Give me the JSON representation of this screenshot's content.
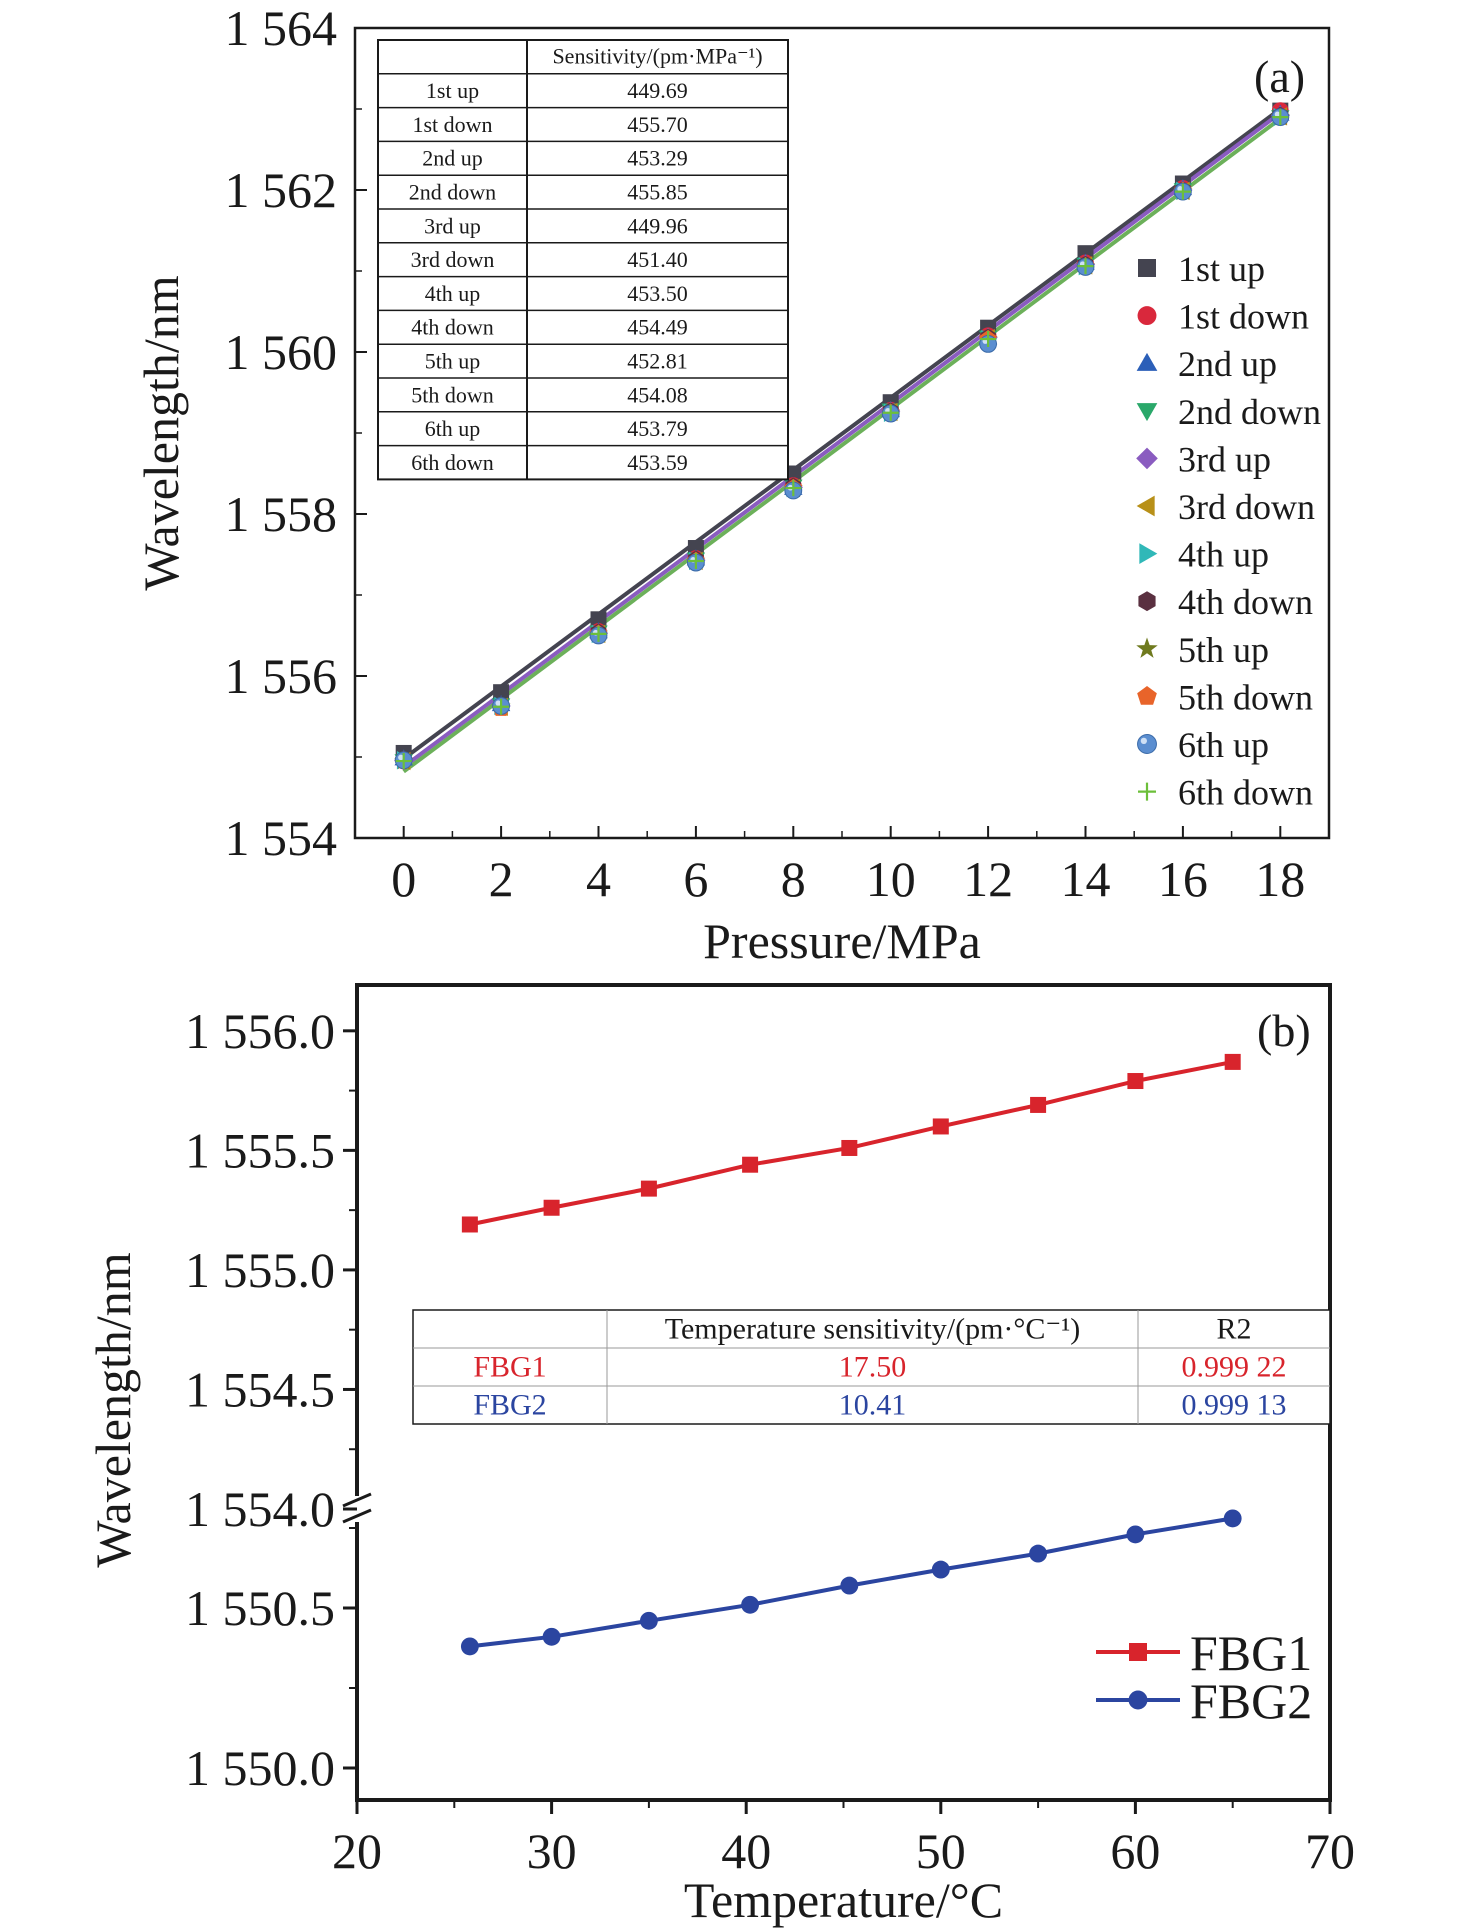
{
  "chart_data": [
    {
      "type": "scatter",
      "panel_label": "(a)",
      "xlabel": "Pressure/MPa",
      "ylabel": "Wavelength/nm",
      "xlim": [
        -1,
        19
      ],
      "ylim": [
        1554,
        1564
      ],
      "xticks": [
        "0",
        "2",
        "4",
        "6",
        "8",
        "10",
        "12",
        "14",
        "16",
        "18"
      ],
      "yticks": [
        {
          "value": 1554,
          "label": "1 554"
        },
        {
          "value": 1556,
          "label": "1 556"
        },
        {
          "value": 1558,
          "label": "1 558"
        },
        {
          "value": 1560,
          "label": "1 560"
        },
        {
          "value": 1562,
          "label": "1 562"
        },
        {
          "value": 1564,
          "label": "1 564"
        }
      ],
      "x": [
        0,
        2,
        4,
        6,
        8,
        10,
        12,
        14,
        16,
        18
      ],
      "series": [
        {
          "name": "1st up",
          "marker": "square",
          "color": "#444450",
          "values": [
            1555.05,
            1555.8,
            1556.7,
            1557.58,
            1558.5,
            1559.38,
            1560.3,
            1561.22,
            1562.08,
            1562.98
          ]
        },
        {
          "name": "1st down",
          "marker": "circle",
          "color": "#d9283c",
          "values": [
            1554.95,
            1555.62,
            1556.55,
            1557.45,
            1558.35,
            1559.28,
            1560.2,
            1561.1,
            1562.02,
            1562.98
          ]
        },
        {
          "name": "2nd up",
          "marker": "triangle-up",
          "color": "#2b5fb8",
          "values": [
            1554.98,
            1555.65,
            1556.55,
            1557.45,
            1558.32,
            1559.28,
            1560.18,
            1561.1,
            1562.02,
            1562.94
          ]
        },
        {
          "name": "2nd down",
          "marker": "triangle-down",
          "color": "#2aa86a",
          "values": [
            1554.95,
            1555.64,
            1556.54,
            1557.44,
            1558.34,
            1559.28,
            1560.18,
            1561.08,
            1562.0,
            1562.9
          ]
        },
        {
          "name": "3rd up",
          "marker": "diamond",
          "color": "#8a5cc0",
          "values": [
            1554.96,
            1555.63,
            1556.53,
            1557.43,
            1558.33,
            1559.27,
            1560.18,
            1561.08,
            1562.0,
            1562.92
          ]
        },
        {
          "name": "3rd down",
          "marker": "triangle-left",
          "color": "#b89018",
          "values": [
            1554.95,
            1555.62,
            1556.52,
            1557.42,
            1558.32,
            1559.26,
            1560.17,
            1561.07,
            1561.99,
            1562.91
          ]
        },
        {
          "name": "4th up",
          "marker": "triangle-right",
          "color": "#30b8b8",
          "values": [
            1554.96,
            1555.63,
            1556.52,
            1557.42,
            1558.32,
            1559.25,
            1560.16,
            1561.06,
            1561.99,
            1562.9
          ]
        },
        {
          "name": "4th down",
          "marker": "hexagon",
          "color": "#5a3040",
          "values": [
            1554.97,
            1555.64,
            1556.54,
            1557.44,
            1558.34,
            1559.27,
            1560.18,
            1561.08,
            1562.0,
            1562.92
          ]
        },
        {
          "name": "5th up",
          "marker": "star",
          "color": "#6f7a1e",
          "values": [
            1554.95,
            1555.62,
            1556.52,
            1557.42,
            1558.32,
            1559.25,
            1560.16,
            1561.06,
            1561.98,
            1562.9
          ]
        },
        {
          "name": "5th down",
          "marker": "pentagon",
          "color": "#e8642a",
          "values": [
            1554.96,
            1555.6,
            1556.52,
            1557.42,
            1558.32,
            1559.25,
            1560.16,
            1561.06,
            1561.99,
            1562.9
          ]
        },
        {
          "name": "6th up",
          "marker": "ball",
          "color": "#5b8ed0",
          "values": [
            1554.96,
            1555.63,
            1556.5,
            1557.4,
            1558.29,
            1559.24,
            1560.1,
            1561.05,
            1561.98,
            1562.9
          ]
        },
        {
          "name": "6th down",
          "marker": "plus",
          "color": "#6cbf3a",
          "values": [
            1554.95,
            1555.62,
            1556.52,
            1557.42,
            1558.32,
            1559.25,
            1560.16,
            1561.06,
            1561.98,
            1562.9
          ]
        }
      ],
      "fit_lines": [
        {
          "color": "#444450",
          "from": [
            0,
            1554.98
          ],
          "to": [
            18,
            1563.0
          ]
        },
        {
          "color": "#6cb05a",
          "from": [
            0,
            1554.82
          ],
          "to": [
            18,
            1562.88
          ]
        },
        {
          "color": "#8a5cc0",
          "from": [
            0,
            1554.88
          ],
          "to": [
            18,
            1562.95
          ]
        }
      ],
      "table": {
        "header": [
          "",
          "Sensitivity/(pm·MPa⁻¹)"
        ],
        "rows": [
          [
            "1st up",
            "449.69"
          ],
          [
            "1st down",
            "455.70"
          ],
          [
            "2nd up",
            "453.29"
          ],
          [
            "2nd down",
            "455.85"
          ],
          [
            "3rd up",
            "449.96"
          ],
          [
            "3rd down",
            "451.40"
          ],
          [
            "4th up",
            "453.50"
          ],
          [
            "4th down",
            "454.49"
          ],
          [
            "5th up",
            "452.81"
          ],
          [
            "5th down",
            "454.08"
          ],
          [
            "6th up",
            "453.79"
          ],
          [
            "6th down",
            "453.59"
          ]
        ]
      },
      "legend_position": "right"
    },
    {
      "type": "line",
      "panel_label": "(b)",
      "xlabel": "Temperature/°C",
      "ylabel": "Wavelength/nm",
      "xlim": [
        20,
        70
      ],
      "xticks": [
        "20",
        "30",
        "40",
        "50",
        "60",
        "70"
      ],
      "upper_ylim": [
        1554.0,
        1556.2
      ],
      "lower_ylim": [
        1549.9,
        1550.8
      ],
      "yticks_upper": [
        {
          "value": 1554.0,
          "label": "1 554.0"
        },
        {
          "value": 1554.5,
          "label": "1 554.5"
        },
        {
          "value": 1555.0,
          "label": "1 555.0"
        },
        {
          "value": 1555.5,
          "label": "1 555.5"
        },
        {
          "value": 1556.0,
          "label": "1 556.0"
        }
      ],
      "yticks_lower": [
        {
          "value": 1550.0,
          "label": "1 550.0"
        },
        {
          "value": 1550.5,
          "label": "1 550.5"
        }
      ],
      "axis_break": true,
      "x": [
        25.8,
        30,
        35,
        40.2,
        45.3,
        50,
        55,
        60,
        65
      ],
      "series": [
        {
          "name": "FBG1",
          "marker": "square",
          "color": "#d8242c",
          "values": [
            1555.19,
            1555.26,
            1555.34,
            1555.44,
            1555.51,
            1555.6,
            1555.69,
            1555.79,
            1555.87
          ]
        },
        {
          "name": "FBG2",
          "marker": "circle",
          "color": "#2b45a0",
          "values": [
            1550.38,
            1550.41,
            1550.46,
            1550.51,
            1550.57,
            1550.62,
            1550.67,
            1550.73,
            1550.78
          ]
        }
      ],
      "table": {
        "header": [
          "",
          "Temperature sensitivity/(pm·°C⁻¹)",
          "R2"
        ],
        "rows": [
          [
            "FBG1",
            "17.50",
            "0.999 22"
          ],
          [
            "FBG2",
            "10.41",
            "0.999 13"
          ]
        ]
      },
      "legend_position": "bottom-right"
    }
  ]
}
